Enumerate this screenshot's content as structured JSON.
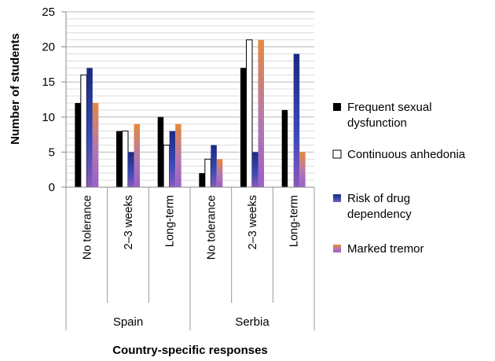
{
  "chart_data": {
    "type": "bar",
    "ylabel": "Number of students",
    "xlabel": "Country-specific responses",
    "ylim": [
      0,
      25
    ],
    "yticks": [
      0,
      5,
      10,
      15,
      20,
      25
    ],
    "grid": true,
    "legend_position": "right",
    "groups": [
      {
        "name": "Spain",
        "categories": [
          "No tolerance",
          "2–3 weeks",
          "Long-term"
        ]
      },
      {
        "name": "Serbia",
        "categories": [
          "No tolerance",
          "2–3 weeks",
          "Long-term"
        ]
      }
    ],
    "categories": [
      "No tolerance",
      "2–3 weeks",
      "Long-term",
      "No tolerance",
      "2–3 weeks",
      "Long-term"
    ],
    "series": [
      {
        "name": [
          "Frequent sexual",
          "dysfunction"
        ],
        "color": "#000000",
        "values": [
          12,
          8,
          10,
          2,
          17,
          11
        ]
      },
      {
        "name": [
          "Continuous anhedonia"
        ],
        "color": "#ffffff",
        "values": [
          16,
          8,
          6,
          4,
          21,
          0
        ]
      },
      {
        "name": [
          "Risk of drug",
          "dependency"
        ],
        "color": "#2a3a9a",
        "values": [
          17,
          5,
          8,
          6,
          5,
          19
        ]
      },
      {
        "name": [
          "Marked tremor"
        ],
        "color": "#c7789a",
        "values": [
          12,
          9,
          9,
          4,
          21,
          5
        ]
      }
    ]
  }
}
